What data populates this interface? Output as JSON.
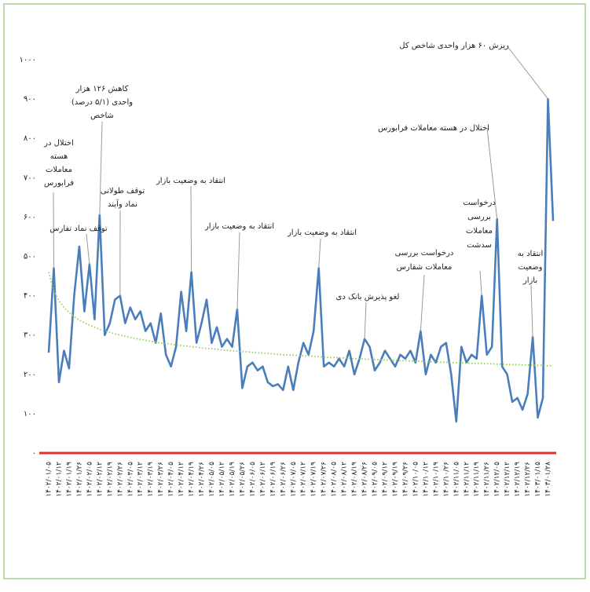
{
  "chart_data": {
    "type": "line",
    "categories": [
      "۱۴۰۲/۰۱/۰۵",
      null,
      "۱۴۰۲/۰۱/۱۲",
      null,
      "۱۴۰۲/۰۱/۱۹",
      null,
      "۱۴۰۲/۰۱/۲۶",
      null,
      "۱۴۰۲/۰۲/۰۵",
      null,
      "۱۴۰۲/۰۲/۱۲",
      null,
      "۱۴۰۲/۰۲/۱۹",
      null,
      "۱۴۰۲/۰۲/۲۶",
      null,
      "۱۴۰۲/۰۳/۰۵",
      null,
      "۱۴۰۲/۰۳/۱۲",
      null,
      "۱۴۰۲/۰۳/۱۹",
      null,
      "۱۴۰۲/۰۳/۲۶",
      null,
      "۱۴۰۲/۰۴/۰۵",
      null,
      "۱۴۰۲/۰۴/۱۲",
      null,
      "۱۴۰۲/۰۴/۱۹",
      null,
      "۱۴۰۲/۰۴/۲۶",
      null,
      "۱۴۰۲/۰۵/۰۵",
      null,
      "۱۴۰۲/۰۵/۱۲",
      null,
      "۱۴۰۲/۰۵/۱۹",
      null,
      "۱۴۰۲/۰۵/۲۶",
      null,
      "۱۴۰۲/۰۶/۰۵",
      null,
      "۱۴۰۲/۰۶/۱۲",
      null,
      "۱۴۰۲/۰۶/۱۹",
      null,
      "۱۴۰۲/۰۶/۲۶",
      null,
      "۱۴۰۲/۰۷/۰۵",
      null,
      "۱۴۰۲/۰۷/۱۲",
      null,
      "۱۴۰۲/۰۷/۱۹",
      null,
      "۱۴۰۲/۰۷/۲۶",
      null,
      "۱۴۰۲/۰۸/۰۵",
      null,
      "۱۴۰۲/۰۸/۱۲",
      null,
      "۱۴۰۲/۰۸/۱۹",
      null,
      "۱۴۰۲/۰۸/۲۶",
      null,
      "۱۴۰۲/۰۹/۰۵",
      null,
      "۱۴۰۲/۰۹/۱۲",
      null,
      "۱۴۰۲/۰۹/۱۹",
      null,
      "۱۴۰۲/۰۹/۲۶",
      null,
      "۱۴۰۲/۱۰/۰۵",
      null,
      "۱۴۰۲/۱۰/۱۲",
      null,
      "۱۴۰۲/۱۰/۱۹",
      null,
      "۱۴۰۲/۱۰/۲۶",
      null,
      "۱۴۰۲/۱۱/۰۵",
      null,
      "۱۴۰۲/۱۱/۱۲",
      null,
      "۱۴۰۲/۱۱/۱۹",
      null,
      "۱۴۰۲/۱۱/۲۶",
      null,
      "۱۴۰۲/۱۲/۰۵",
      null,
      "۱۴۰۲/۱۲/۱۲",
      null,
      "۱۴۰۲/۱۲/۱۹",
      null,
      "۱۴۰۲/۱۲/۲۶",
      null,
      "۱۴۰۳/۰۱/۱۵",
      null,
      "۱۴۰۳/۰۱/۲۸",
      null
    ],
    "series": [
      {
        "color": "#4a7ebb",
        "values": [
          255,
          470,
          180,
          260,
          215,
          400,
          525,
          360,
          480,
          340,
          605,
          300,
          330,
          390,
          400,
          330,
          370,
          340,
          360,
          310,
          330,
          280,
          355,
          250,
          220,
          270,
          410,
          310,
          460,
          280,
          330,
          390,
          280,
          320,
          270,
          290,
          270,
          365,
          165,
          220,
          230,
          210,
          220,
          180,
          170,
          175,
          160,
          220,
          160,
          230,
          280,
          250,
          310,
          470,
          220,
          230,
          220,
          240,
          220,
          260,
          200,
          240,
          290,
          270,
          210,
          230,
          260,
          240,
          220,
          250,
          240,
          260,
          230,
          310,
          200,
          250,
          230,
          270,
          280,
          200,
          80,
          270,
          230,
          250,
          240,
          400,
          250,
          270,
          595,
          220,
          200,
          130,
          140,
          110,
          150,
          295,
          90,
          140,
          900,
          590
        ]
      },
      {
        "color": "#92d050",
        "dashed": true,
        "values": [
          460,
          412,
          387,
          370,
          357,
          347,
          338,
          331,
          325,
          320,
          315,
          310,
          307,
          303,
          300,
          297,
          294,
          291,
          289,
          287,
          284,
          282,
          280,
          278,
          277,
          275,
          273,
          272,
          270,
          269,
          267,
          266,
          265,
          264,
          262,
          261,
          260,
          259,
          258,
          257,
          256,
          255,
          254,
          253,
          252,
          251,
          250,
          249,
          249,
          248,
          247,
          247,
          246,
          245,
          244,
          243,
          243,
          242,
          242,
          241,
          240,
          240,
          239,
          238,
          238,
          237,
          237,
          236,
          236,
          235,
          235,
          234,
          234,
          233,
          233,
          232,
          232,
          231,
          231,
          230,
          230,
          229,
          229,
          228,
          228,
          228,
          227,
          227,
          226,
          226,
          225,
          225,
          225,
          224,
          224,
          223,
          223,
          223,
          222,
          222
        ]
      }
    ],
    "ylim": [
      0,
      1000
    ],
    "yticks": [
      {
        "value": 0,
        "label": "۰"
      },
      {
        "value": 100,
        "label": "۱۰۰"
      },
      {
        "value": 200,
        "label": "۲۰۰"
      },
      {
        "value": 300,
        "label": "۳۰۰"
      },
      {
        "value": 400,
        "label": "۴۰۰"
      },
      {
        "value": 500,
        "label": "۵۰۰"
      },
      {
        "value": 600,
        "label": "۶۰۰"
      },
      {
        "value": 700,
        "label": "۷۰۰"
      },
      {
        "value": 800,
        "label": "۸۰۰"
      },
      {
        "value": 900,
        "label": "۹۰۰"
      },
      {
        "value": 1000,
        "label": "۱۰۰۰"
      }
    ],
    "baseline_color": "#e03030",
    "annotations": [
      [
        "اختلال در",
        "هسته",
        "معاملات",
        "فرابورس"
      ],
      [
        "توقف نماد تفارس"
      ],
      [
        "کاهش ۱۲۶ هزار",
        "واحدی (۵/۱ درصد)",
        "شاخص"
      ],
      [
        "توقف طولانی",
        "نماد وآیند"
      ],
      [
        "انتقاد به وضعیت بازار"
      ],
      [
        "انتقاد به وضعیت بازار"
      ],
      [
        "انتقاد به وضعیت بازار"
      ],
      [
        "لغو پذیرش بانک دی"
      ],
      [
        "درخواست بررسی",
        "معاملات شقارس"
      ],
      [
        "درخواست",
        "بررسی",
        "معاملات",
        "سدشت"
      ],
      [
        "اختلال در هسته معاملات فرابورس"
      ],
      [
        "انتقاد به",
        "وضعیت",
        "بازار"
      ],
      [
        "ریزش ۶۰ هزار واحدی شاخص کل"
      ]
    ]
  }
}
